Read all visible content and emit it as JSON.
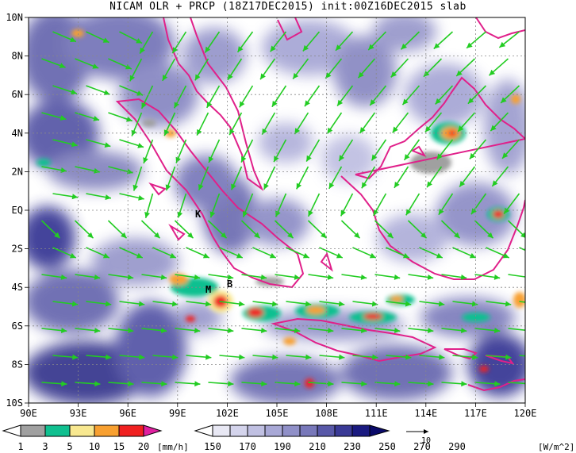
{
  "title": "NICAM OLR + PRCP (18Z17DEC2015) init:00Z16DEC2015 slab",
  "map": {
    "lat_labels": [
      "10N",
      "8N",
      "6N",
      "4N",
      "2N",
      "EQ",
      "2S",
      "4S",
      "6S",
      "8S",
      "10S"
    ],
    "lon_labels": [
      "90E",
      "93E",
      "96E",
      "99E",
      "102E",
      "105E",
      "108E",
      "111E",
      "114E",
      "117E",
      "120E"
    ],
    "lon_range": [
      90,
      120
    ],
    "lat_range": [
      -10,
      10
    ],
    "station_markers": [
      {
        "label": "K",
        "lon": 100.4,
        "lat": -0.2
      },
      {
        "label": "M",
        "lon": 100.9,
        "lat": -4.2
      },
      {
        "label": "B",
        "lon": 102.2,
        "lat": -3.9
      }
    ],
    "reference_vector_label": "10"
  },
  "prcp_colorbar": {
    "tick_labels": [
      "1",
      "3",
      "5",
      "10",
      "15",
      "20"
    ],
    "unit": "[mm/h]",
    "colors": [
      "#ffffff",
      "#a0a0a0",
      "#10c090",
      "#f8e890",
      "#f8a030",
      "#f02020",
      "#e020a0"
    ]
  },
  "olr_colorbar": {
    "tick_labels": [
      "150",
      "170",
      "190",
      "210",
      "230",
      "250",
      "270",
      "290"
    ],
    "unit": "[W/m^2]",
    "colors": [
      "#ffffff",
      "#e8e8f4",
      "#d4d4ec",
      "#c0c0e2",
      "#a8a8d6",
      "#9090c8",
      "#7878ba",
      "#5858a8",
      "#3a3a96",
      "#1a1a80",
      "#0a0a6a"
    ]
  },
  "colors": {
    "coastline": "#e0208a",
    "wind_arrow": "#22cc22",
    "grid": "#888888"
  }
}
